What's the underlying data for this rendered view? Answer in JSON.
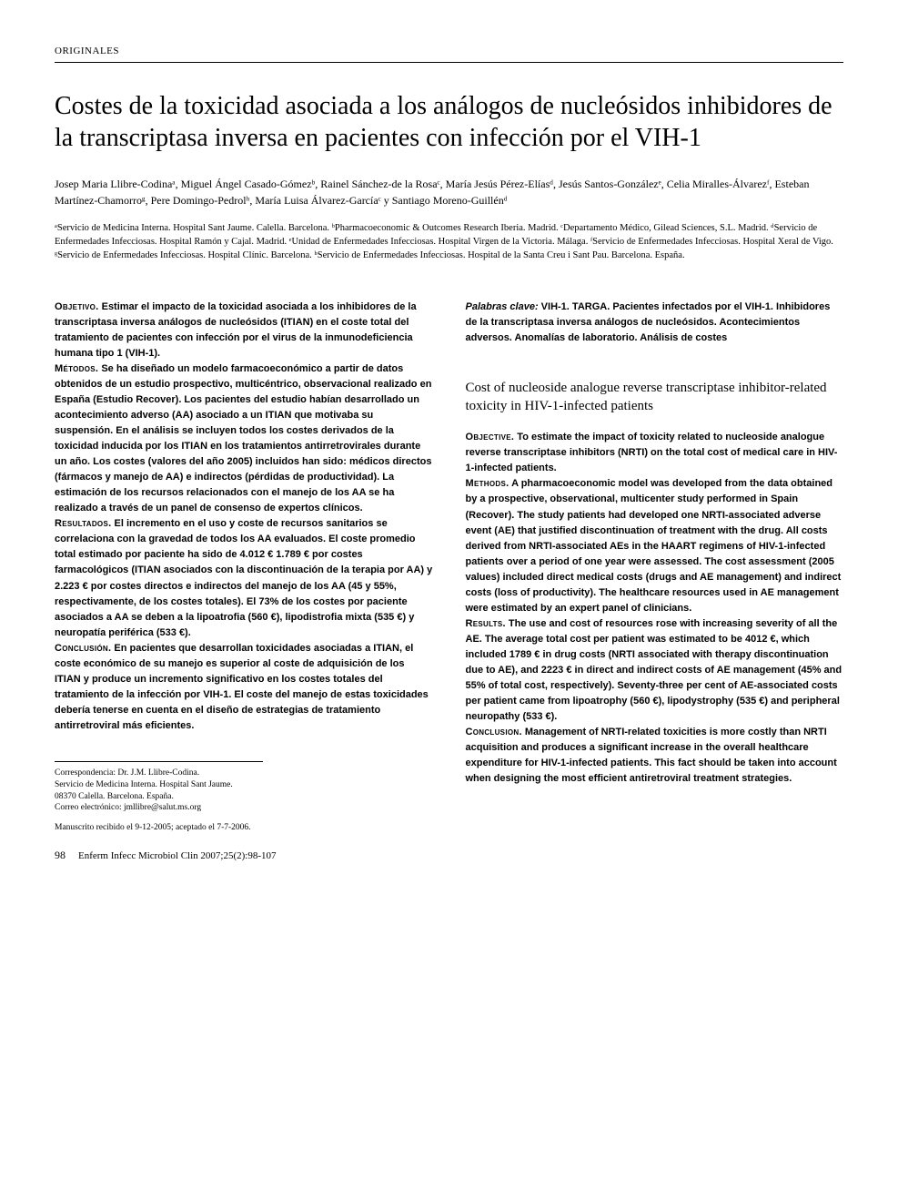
{
  "header": {
    "section_label": "ORIGINALES"
  },
  "title": "Costes de la toxicidad asociada a los análogos de nucleósidos inhibidores de la transcriptasa inversa en pacientes con infección por el VIH-1",
  "authors": "Josep Maria Llibre-Codinaᵃ, Miguel Ángel Casado-Gómezᵇ, Rainel Sánchez-de la Rosaᶜ, María Jesús Pérez-Elíasᵈ, Jesús Santos-Gonzálezᵉ, Celia Miralles-Álvarezᶠ, Esteban Martínez-Chamorroᵍ, Pere Domingo-Pedrolʰ, María Luisa Álvarez-Garcíaᶜ y Santiago Moreno-Guillénᵈ",
  "affiliations": "ᵃServicio de Medicina Interna. Hospital Sant Jaume. Calella. Barcelona. ᵇPharmacoeconomic & Outcomes Research Iberia. Madrid. ᶜDepartamento Médico, Gilead Sciences, S.L. Madrid. ᵈServicio de Enfermedades Infecciosas. Hospital Ramón y Cajal. Madrid. ᵉUnidad de Enfermedades Infecciosas. Hospital Virgen de la Victoria. Málaga. ᶠServicio de Enfermedades Infecciosas. Hospital Xeral de Vigo. ᵍServicio de Enfermedades Infecciosas. Hospital Clínic. Barcelona. ʰServicio de Enfermedades Infecciosas. Hospital de la Santa Creu i Sant Pau. Barcelona. España.",
  "abstract_es": {
    "objetivo_label": "Objetivo.",
    "objetivo": " Estimar el impacto de la toxicidad asociada a los inhibidores de la transcriptasa inversa análogos de nucleósidos (ITIAN) en el coste total del tratamiento de pacientes con infección por el virus de la inmunodeficiencia humana tipo 1 (VIH-1).",
    "metodos_label": "Métodos.",
    "metodos": " Se ha diseñado un modelo farmacoeconómico a partir de datos obtenidos de un estudio prospectivo, multicéntrico, observacional realizado en España (Estudio Recover). Los pacientes del estudio habían desarrollado un acontecimiento adverso (AA) asociado a un ITIAN que motivaba su suspensión. En el análisis se incluyen todos los costes derivados de la toxicidad inducida por los ITIAN en los tratamientos antirretrovirales durante un año. Los costes (valores del año 2005) incluidos han sido: médicos directos (fármacos y manejo de AA) e indirectos (pérdidas de productividad). La estimación de los recursos relacionados con el manejo de los AA se ha realizado a través de un panel de consenso de expertos clínicos.",
    "resultados_label": "Resultados.",
    "resultados": " El incremento en el uso y coste de recursos sanitarios se correlaciona con la gravedad de todos los AA evaluados. El coste promedio total estimado por paciente ha sido de 4.012 € 1.789 € por costes farmacológicos (ITIAN asociados con la discontinuación de la terapia por AA) y 2.223 € por costes directos e indirectos del manejo de los AA (45 y 55%, respectivamente, de los costes totales). El 73% de los costes por paciente asociados a AA se deben a la lipoatrofia (560 €), lipodistrofia mixta (535 €) y neuropatía periférica (533 €).",
    "conclusion_label": "Conclusión.",
    "conclusion": " En pacientes que desarrollan toxicidades asociadas a ITIAN, el coste económico de su manejo es superior al coste de adquisición de los ITIAN y produce un incremento significativo en los costes totales del tratamiento de la infección por VIH-1. El coste del manejo de estas toxicidades debería tenerse en cuenta en el diseño de estrategias de tratamiento antirretroviral más eficientes."
  },
  "keywords": {
    "label": "Palabras clave:",
    "text": " VIH-1. TARGA. Pacientes infectados por el VIH-1. Inhibidores de la transcriptasa inversa análogos de nucleósidos. Acontecimientos adversos. Anomalías de laboratorio. Análisis de costes"
  },
  "en_title": "Cost of nucleoside analogue reverse transcriptase inhibitor-related toxicity in HIV-1-infected patients",
  "abstract_en": {
    "objective_label": "Objective.",
    "objective": " To estimate the impact of toxicity related to nucleoside analogue reverse transcriptase inhibitors (NRTI) on the total cost of medical care in HIV-1-infected patients.",
    "methods_label": "Methods.",
    "methods": " A pharmacoeconomic model was developed from the data obtained by a prospective, observational, multicenter study performed in Spain (Recover). The study patients had developed one NRTI-associated adverse event (AE) that justified discontinuation of treatment with the drug. All costs derived from NRTI-associated AEs in the HAART regimens of HIV-1-infected patients over a period of one year were assessed. The cost assessment (2005 values) included direct medical costs (drugs and AE management) and indirect costs (loss of productivity). The healthcare resources used in AE management were estimated by an expert panel of clinicians.",
    "results_label": "Results.",
    "results": " The use and cost of resources rose with increasing severity of all the AE. The average total cost per patient was estimated to be 4012 €, which included 1789 € in drug costs (NRTI associated with therapy discontinuation due to AE), and 2223 € in direct and indirect costs of AE management (45% and 55% of total cost, respectively). Seventy-three per cent of AE-associated costs per patient came from lipoatrophy (560 €), lipodystrophy (535 €) and peripheral neuropathy (533 €).",
    "conclusion_label": "Conclusion.",
    "conclusion": " Management of NRTI-related toxicities is more costly than NRTI acquisition and produces a significant increase in the overall healthcare expenditure for HIV-1-infected patients. This fact should be taken into account when designing the most efficient antiretroviral treatment strategies."
  },
  "correspondence": {
    "line1": "Correspondencia: Dr. J.M. Llibre-Codina.",
    "line2": "Servicio de Medicina Interna. Hospital Sant Jaume.",
    "line3": "08370 Calella. Barcelona. España.",
    "line4": "Correo electrónico: jmllibre@salut.ms.org"
  },
  "manuscript": "Manuscrito recibido el 9-12-2005; aceptado el 7-7-2006.",
  "footer": {
    "page": "98",
    "citation": "Enferm Infecc Microbiol Clin 2007;25(2):98-107"
  }
}
